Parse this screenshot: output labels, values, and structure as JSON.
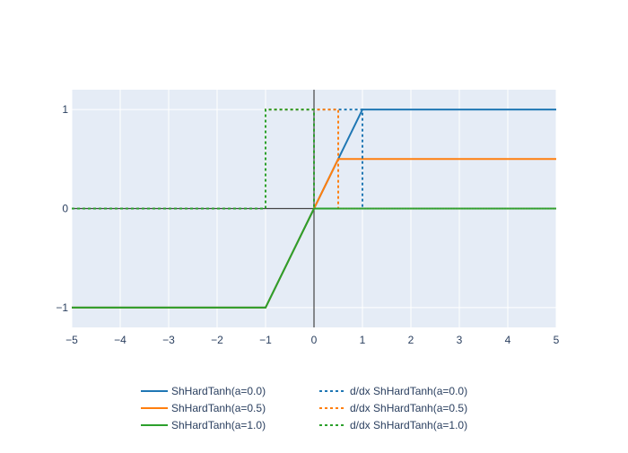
{
  "chart_data": {
    "type": "line",
    "title": "",
    "xlabel": "",
    "ylabel": "",
    "xlim": [
      -5,
      5
    ],
    "ylim": [
      -1.2,
      1.2
    ],
    "x_ticks": [
      -5,
      -4,
      -3,
      -2,
      -1,
      0,
      1,
      2,
      3,
      4,
      5
    ],
    "x_tick_labels": [
      "−5",
      "−4",
      "−3",
      "−2",
      "−1",
      "0",
      "1",
      "2",
      "3",
      "4",
      "5"
    ],
    "y_ticks": [
      -1,
      0,
      1
    ],
    "y_tick_labels": [
      "−1",
      "0",
      "1"
    ],
    "grid": true,
    "background_color": "#e5ecf6",
    "legend_position": "bottom",
    "series": [
      {
        "name": "ShHardTanh(a=0.0)",
        "style": "solid",
        "color": "#1f77b4",
        "x": [
          -5,
          -1,
          0,
          1,
          5
        ],
        "y": [
          -1,
          -1,
          0,
          1,
          1
        ]
      },
      {
        "name": "ShHardTanh(a=0.5)",
        "style": "solid",
        "color": "#ff7f0e",
        "x": [
          -5,
          -1,
          0,
          0.5,
          5
        ],
        "y": [
          -1,
          -1,
          0,
          0.5,
          0.5
        ]
      },
      {
        "name": "ShHardTanh(a=1.0)",
        "style": "solid",
        "color": "#2ca02c",
        "x": [
          -5,
          -1,
          0,
          5
        ],
        "y": [
          -1,
          -1,
          0,
          0
        ]
      },
      {
        "name": "d/dx ShHardTanh(a=0.0)",
        "style": "dotted",
        "color": "#1f77b4",
        "x": [
          -5,
          -1,
          -1,
          1,
          1,
          5
        ],
        "y": [
          0,
          0,
          1,
          1,
          0,
          0
        ]
      },
      {
        "name": "d/dx ShHardTanh(a=0.5)",
        "style": "dotted",
        "color": "#ff7f0e",
        "x": [
          -5,
          -1,
          -1,
          0.5,
          0.5,
          5
        ],
        "y": [
          0,
          0,
          1,
          1,
          0,
          0
        ]
      },
      {
        "name": "d/dx ShHardTanh(a=1.0)",
        "style": "dotted",
        "color": "#2ca02c",
        "x": [
          -5,
          -1,
          -1,
          0,
          0,
          5
        ],
        "y": [
          0,
          0,
          1,
          1,
          0,
          0
        ]
      }
    ]
  }
}
